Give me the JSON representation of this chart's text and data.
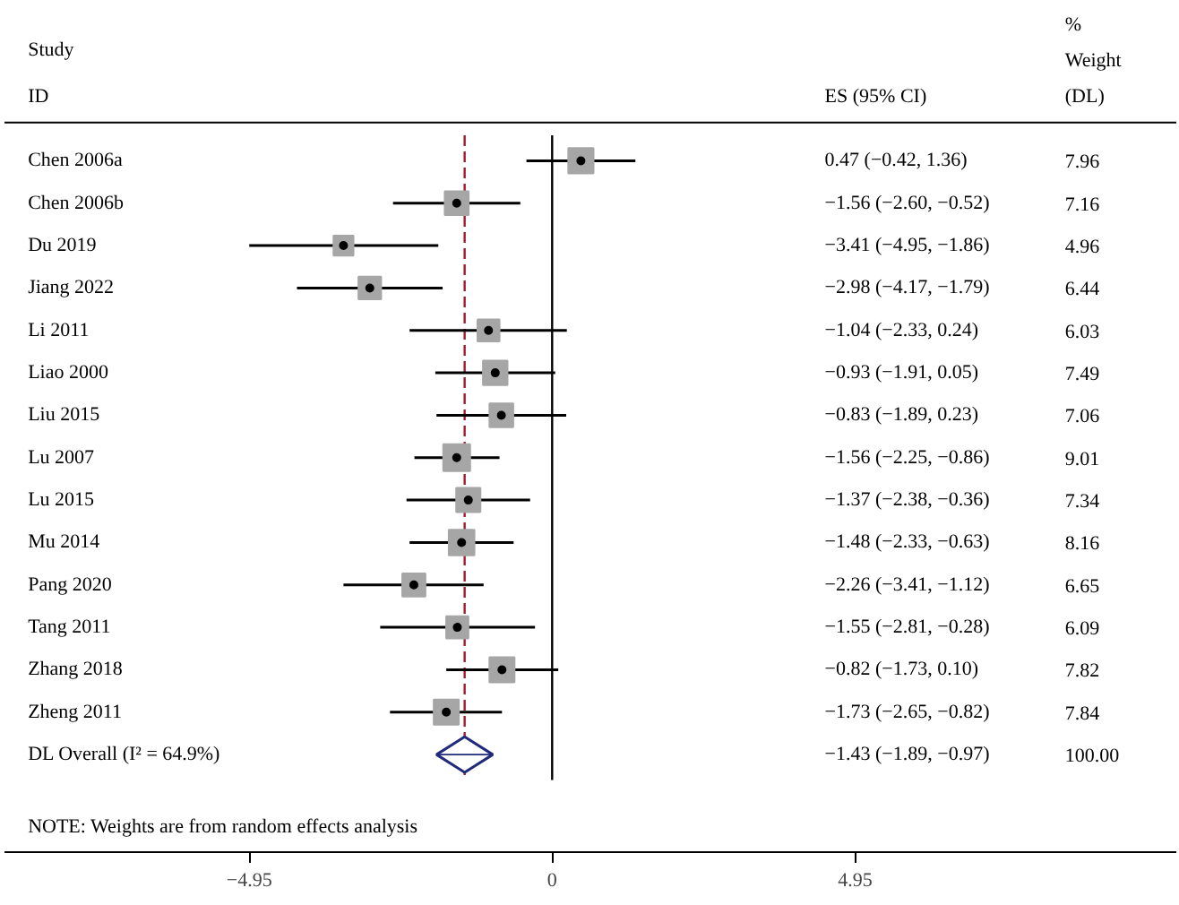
{
  "chart_data": {
    "type": "bubble",
    "orientation": "horizontal",
    "categories": [
      "Chen 2006a",
      "Chen 2006b",
      "Du 2019",
      "Jiang 2022",
      "Li 2011",
      "Liao 2000",
      "Liu 2015",
      "Lu 2007",
      "Lu 2015",
      "Mu 2014",
      "Pang 2020",
      "Tang 2011",
      "Zhang 2018",
      "Zheng 2011",
      "DL Overall (I² = 64.9%)"
    ],
    "series": [
      {
        "marker": "square",
        "color": "#a6a6a6",
        "values": [
          0.47,
          -1.56,
          -3.41,
          -2.98,
          -1.04,
          -0.93,
          -0.83,
          -1.56,
          -1.37,
          -1.48,
          -2.26,
          -1.55,
          -0.82,
          -1.73,
          null
        ],
        "errors": [
          [
            -0.42,
            1.36
          ],
          [
            -2.6,
            -0.52
          ],
          [
            -4.95,
            -1.86
          ],
          [
            -4.17,
            -1.79
          ],
          [
            -2.33,
            0.24
          ],
          [
            -1.91,
            0.05
          ],
          [
            -1.89,
            0.23
          ],
          [
            -2.25,
            -0.86
          ],
          [
            -2.38,
            -0.36
          ],
          [
            -2.33,
            -0.63
          ],
          [
            -3.41,
            -1.12
          ],
          [
            -2.81,
            -0.28
          ],
          [
            -1.73,
            0.1
          ],
          [
            -2.65,
            -0.82
          ],
          null
        ],
        "sizes": [
          0.88,
          0.79,
          0.55,
          0.71,
          0.67,
          0.83,
          0.78,
          1,
          0.81,
          0.91,
          0.74,
          0.68,
          0.87,
          0.87,
          null
        ]
      },
      {
        "type": "scatter",
        "marker": "diamond",
        "color": "#1f2a7a",
        "values": [
          null,
          null,
          null,
          null,
          null,
          null,
          null,
          null,
          null,
          null,
          null,
          null,
          null,
          null,
          -1.43
        ],
        "errors": [
          null,
          null,
          null,
          null,
          null,
          null,
          null,
          null,
          null,
          null,
          null,
          null,
          null,
          null,
          [
            -1.89,
            -0.97
          ]
        ]
      }
    ],
    "xlim": [
      -8.95,
      10.2
    ],
    "xticks": [
      {
        "value": -4.95,
        "label": "−4.95"
      },
      0,
      4.95
    ],
    "ref_lines": [
      {
        "axis": "x",
        "value": 0,
        "color": "#000000",
        "line_style": "solid"
      },
      {
        "axis": "x",
        "value": -1.43,
        "color": "#a01c2c",
        "line_style": "dashed"
      }
    ],
    "annotations": [
      "Study",
      "ID",
      "ES (95% CI)",
      "%",
      "Weight",
      "(DL)",
      "0.47 (−0.42, 1.36)",
      "−1.56 (−2.60, −0.52)",
      "−3.41 (−4.95, −1.86)",
      "−2.98 (−4.17, −1.79)",
      "−1.04 (−2.33, 0.24)",
      "−0.93 (−1.91, 0.05)",
      "−0.83 (−1.89, 0.23)",
      "−1.56 (−2.25, −0.86)",
      "−1.37 (−2.38, −0.36)",
      "−1.48 (−2.33, −0.63)",
      "−2.26 (−3.41, −1.12)",
      "−1.55 (−2.81, −0.28)",
      "−0.82 (−1.73, 0.10)",
      "−1.73 (−2.65, −0.82)",
      "−1.43 (−1.89, −0.97)",
      "7.96",
      "7.16",
      "4.96",
      "6.44",
      "6.03",
      "7.49",
      "7.06",
      "9.01",
      "7.34",
      "8.16",
      "6.65",
      "6.09",
      "7.82",
      "7.84",
      "100.00",
      "NOTE: Weights are from random effects analysis"
    ],
    "grid": false
  }
}
